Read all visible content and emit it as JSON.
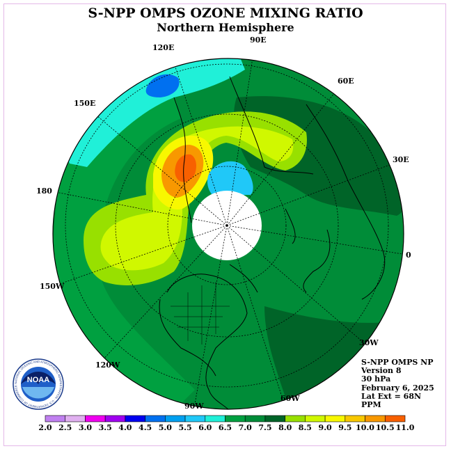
{
  "title": "S-NPP OMPS OZONE MIXING RATIO",
  "subtitle": "Northern Hemisphere",
  "longitude_labels": [
    "90E",
    "60E",
    "30E",
    "0",
    "30W",
    "60W",
    "90W",
    "120W",
    "150W",
    "180",
    "150E",
    "120E"
  ],
  "info": {
    "product": "S-NPP OMPS NP",
    "version": "Version 8",
    "level": "30 hPa",
    "date": "February 6, 2025",
    "lat_ext": "Lat Ext = 68N",
    "units": "PPM"
  },
  "logo": {
    "text": "NOAA",
    "ring_text": "NATIONAL OCEANIC AND ATMOSPHERIC ADMINISTRATION · U.S. DEPARTMENT OF COMMERCE"
  },
  "colorbar": {
    "ticks": [
      "2.0",
      "2.5",
      "3.0",
      "3.5",
      "4.0",
      "4.5",
      "5.0",
      "5.5",
      "6.0",
      "6.5",
      "7.0",
      "7.5",
      "8.0",
      "8.5",
      "9.0",
      "9.5",
      "10.0",
      "10.5",
      "11.0"
    ],
    "colors": [
      "#c080f0",
      "#e0b0f0",
      "#f000f0",
      "#a000f0",
      "#0000f0",
      "#0070f0",
      "#00a0f0",
      "#20c8f8",
      "#20f0d8",
      "#00a040",
      "#008c38",
      "#006428",
      "#98e000",
      "#d0f800",
      "#f8f800",
      "#f8c800",
      "#f89800",
      "#f86000",
      "#f00000",
      "#b00000",
      "#805030"
    ]
  },
  "map_colors": {
    "base": "#008c38",
    "dark": "#006428",
    "mid": "#00a040",
    "cyan": "#20f0d8",
    "lightblue": "#20c8f8",
    "blue": "#0070f0",
    "lime": "#98e000",
    "yellowgreen": "#d0f800",
    "yellow": "#f8f800",
    "orange": "#f89800",
    "redorange": "#f86000",
    "polar_cap": "#ffffff"
  }
}
